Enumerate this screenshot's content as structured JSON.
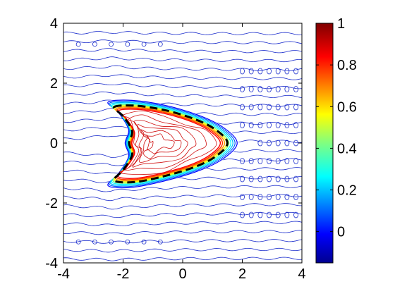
{
  "figure": {
    "background": "#ffffff"
  },
  "chart_data": {
    "type": "contour",
    "title": "",
    "xlabel": "",
    "ylabel": "",
    "xlim": [
      -4,
      4
    ],
    "ylim": [
      -4,
      4
    ],
    "xticks": [
      -4,
      -2,
      0,
      2,
      4
    ],
    "yticks": [
      -4,
      -2,
      0,
      2,
      4
    ],
    "xtick_labels": [
      "-4",
      "-2",
      "0",
      "2",
      "4"
    ],
    "ytick_labels": [
      "-4",
      "-2",
      "0",
      "2",
      "4"
    ],
    "grid": false,
    "colormap": "jet",
    "colorbar": {
      "min": -0.15,
      "max": 1,
      "ticks": [
        0,
        0.2,
        0.4,
        0.6,
        0.8,
        1
      ],
      "tick_labels": [
        "0",
        "0.2",
        "0.4",
        "0.6",
        "0.8",
        "1"
      ]
    },
    "boundary_curve": {
      "style": "dashed",
      "color": "#000000",
      "points": [
        [
          -2.3,
          1.2
        ],
        [
          -1.6,
          1.25
        ],
        [
          -0.6,
          1.1
        ],
        [
          0.4,
          0.8
        ],
        [
          1.1,
          0.45
        ],
        [
          1.5,
          0.0
        ],
        [
          1.1,
          -0.45
        ],
        [
          0.4,
          -0.8
        ],
        [
          -0.6,
          -1.1
        ],
        [
          -1.6,
          -1.3
        ],
        [
          -2.3,
          -1.25
        ],
        [
          -2.0,
          -0.9
        ],
        [
          -1.7,
          -0.4
        ],
        [
          -1.8,
          0.0
        ],
        [
          -1.7,
          0.4
        ],
        [
          -2.0,
          0.9
        ]
      ]
    }
  }
}
